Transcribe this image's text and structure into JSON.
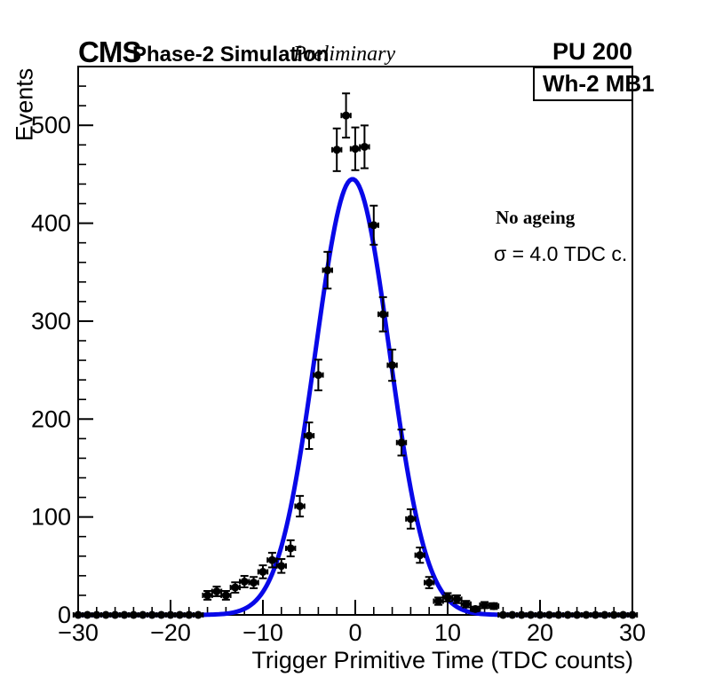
{
  "header": {
    "experiment": "CMS",
    "simulation_label": "Phase-2 Simulation",
    "preliminary_label": "Preliminary",
    "pileup_label": "PU 200"
  },
  "legend_box": {
    "label": "Wh-2 MB1"
  },
  "annotations": {
    "line1": "No ageing",
    "line2": "σ = 4.0 TDC c."
  },
  "chart_data": {
    "type": "scatter",
    "description": "Trigger primitive time distribution (black points with error bars) with Gaussian fit (blue curve)",
    "title": "",
    "xlabel": "Trigger Primitive Time (TDC counts)",
    "ylabel": "Events",
    "xlim": [
      -30,
      30
    ],
    "ylim": [
      0,
      560
    ],
    "xticks": [
      -30,
      -20,
      -10,
      0,
      10,
      20,
      30
    ],
    "yticks": [
      0,
      100,
      200,
      300,
      400,
      500
    ],
    "x_minor_step": 2,
    "y_minor_step": 20,
    "grid": false,
    "legend_position": "top-right",
    "marker_color": "#000000",
    "bin_width": 1,
    "error_model": "vertical errors = sqrt(N); horizontal errors = half bin width",
    "points": [
      [
        -30,
        0
      ],
      [
        -29,
        0
      ],
      [
        -28,
        0
      ],
      [
        -27,
        0
      ],
      [
        -26,
        0
      ],
      [
        -25,
        0
      ],
      [
        -24,
        0
      ],
      [
        -23,
        0
      ],
      [
        -22,
        0
      ],
      [
        -21,
        0
      ],
      [
        -20,
        0
      ],
      [
        -19,
        0
      ],
      [
        -18,
        0
      ],
      [
        -17,
        0
      ],
      [
        -16,
        20
      ],
      [
        -15,
        24
      ],
      [
        -14,
        20
      ],
      [
        -13,
        28
      ],
      [
        -12,
        34
      ],
      [
        -11,
        33
      ],
      [
        -10,
        44
      ],
      [
        -9,
        56
      ],
      [
        -8,
        50
      ],
      [
        -7,
        68
      ],
      [
        -6,
        111
      ],
      [
        -5,
        183
      ],
      [
        -4,
        245
      ],
      [
        -3,
        352
      ],
      [
        -2,
        475
      ],
      [
        -1,
        510
      ],
      [
        0,
        476
      ],
      [
        1,
        478
      ],
      [
        2,
        398
      ],
      [
        3,
        307
      ],
      [
        4,
        255
      ],
      [
        5,
        176
      ],
      [
        6,
        98
      ],
      [
        7,
        61
      ],
      [
        8,
        33
      ],
      [
        9,
        14
      ],
      [
        10,
        18
      ],
      [
        11,
        16
      ],
      [
        12,
        11
      ],
      [
        13,
        6
      ],
      [
        14,
        10
      ],
      [
        15,
        9
      ],
      [
        16,
        0
      ],
      [
        17,
        0
      ],
      [
        18,
        0
      ],
      [
        19,
        0
      ],
      [
        20,
        0
      ],
      [
        21,
        0
      ],
      [
        22,
        0
      ],
      [
        23,
        0
      ],
      [
        24,
        0
      ],
      [
        25,
        0
      ],
      [
        26,
        0
      ],
      [
        27,
        0
      ],
      [
        28,
        0
      ],
      [
        29,
        0
      ],
      [
        30,
        0
      ]
    ],
    "fit": {
      "type": "gaussian",
      "amplitude": 445,
      "mean": -0.3,
      "sigma": 4.0,
      "color": "#0808e8",
      "linewidth": 5
    }
  }
}
